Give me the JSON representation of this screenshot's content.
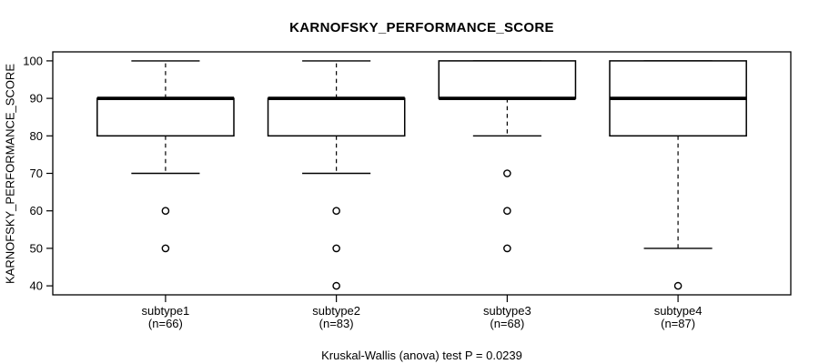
{
  "chart_data": {
    "type": "boxplot",
    "title": "KARNOFSKY_PERFORMANCE_SCORE",
    "ylabel": "KARNOFSKY_PERFORMANCE_SCORE",
    "xlabel": "",
    "footer": "Kruskal-Wallis (anova) test P = 0.0239",
    "p_value": "0.0239",
    "test_name": "Kruskal-Wallis (anova) test",
    "yticks": [
      40,
      50,
      60,
      70,
      80,
      90,
      100
    ],
    "ylim": [
      37.6,
      102.4
    ],
    "grid": false,
    "legend": "none",
    "colors": {
      "line": "#000000",
      "box_fill": "#ffffff",
      "background": "#ffffff"
    },
    "categories": [
      {
        "label": "subtype1",
        "n_label": "(n=66)",
        "q1": 80,
        "median": 90,
        "q3": 90,
        "whisker_low": 70,
        "whisker_high": 100,
        "outliers": [
          60,
          50
        ]
      },
      {
        "label": "subtype2",
        "n_label": "(n=83)",
        "q1": 80,
        "median": 90,
        "q3": 90,
        "whisker_low": 70,
        "whisker_high": 100,
        "outliers": [
          60,
          50,
          40
        ]
      },
      {
        "label": "subtype3",
        "n_label": "(n=68)",
        "q1": 90,
        "median": 90,
        "q3": 100,
        "whisker_low": 80,
        "whisker_high": 100,
        "outliers": [
          70,
          60,
          50
        ]
      },
      {
        "label": "subtype4",
        "n_label": "(n=87)",
        "q1": 80,
        "median": 90,
        "q3": 100,
        "whisker_low": 50,
        "whisker_high": 100,
        "outliers": [
          40
        ]
      }
    ]
  }
}
